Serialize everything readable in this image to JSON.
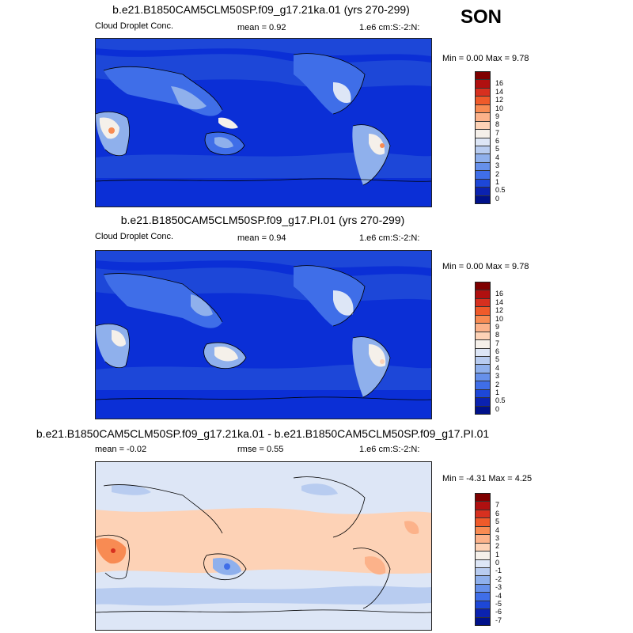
{
  "season": "SON",
  "panels": [
    {
      "title": "b.e21.B1850CAM5CLM50SP.f09_g17.21ka.01 (yrs 270-299)",
      "left_label": "Cloud Droplet Conc.",
      "center_label": "mean =   0.92",
      "right_label": "1.e6 cm:S:-2:N:",
      "minmax": "Min =   0.00 Max =   9.78",
      "colorbar": {
        "labels": [
          "16",
          "14",
          "12",
          "10",
          "9",
          "8",
          "7",
          "6",
          "5",
          "4",
          "3",
          "2",
          "1",
          "0.5",
          "0"
        ],
        "colors": [
          "#7f0000",
          "#b01010",
          "#d7301f",
          "#ef5a2a",
          "#f88b53",
          "#fcb28a",
          "#fdd2b6",
          "#f5f0ea",
          "#dde6f6",
          "#b8ccf0",
          "#8fb0ec",
          "#6690ea",
          "#3f6ee8",
          "#1d47d8",
          "#0b22b0",
          "#00118a"
        ]
      }
    },
    {
      "title": "b.e21.B1850CAM5CLM50SP.f09_g17.PI.01 (yrs 270-299)",
      "left_label": "Cloud Droplet Conc.",
      "center_label": "mean =   0.94",
      "right_label": "1.e6 cm:S:-2:N:",
      "minmax": "Min =   0.00 Max =   9.78",
      "colorbar": {
        "labels": [
          "16",
          "14",
          "12",
          "10",
          "9",
          "8",
          "7",
          "6",
          "5",
          "4",
          "3",
          "2",
          "1",
          "0.5",
          "0"
        ],
        "colors": [
          "#7f0000",
          "#b01010",
          "#d7301f",
          "#ef5a2a",
          "#f88b53",
          "#fcb28a",
          "#fdd2b6",
          "#f5f0ea",
          "#dde6f6",
          "#b8ccf0",
          "#8fb0ec",
          "#6690ea",
          "#3f6ee8",
          "#1d47d8",
          "#0b22b0",
          "#00118a"
        ]
      }
    },
    {
      "title": "b.e21.B1850CAM5CLM50SP.f09_g17.21ka.01 - b.e21.B1850CAM5CLM50SP.f09_g17.PI.01",
      "left_label": "mean =  -0.02",
      "center_label": "rmse =   0.55",
      "right_label": "1.e6 cm:S:-2:N:",
      "minmax": "Min =  -4.31 Max =   4.25",
      "colorbar": {
        "labels": [
          "7",
          "6",
          "5",
          "4",
          "3",
          "2",
          "1",
          "0",
          "-1",
          "-2",
          "-3",
          "-4",
          "-5",
          "-6",
          "-7"
        ],
        "colors": [
          "#7f0000",
          "#b01010",
          "#d7301f",
          "#ef5a2a",
          "#f88b53",
          "#fcb28a",
          "#fdd2b6",
          "#f5f0ea",
          "#dde6f6",
          "#b8ccf0",
          "#8fb0ec",
          "#6690ea",
          "#3f6ee8",
          "#1d47d8",
          "#0b22b0",
          "#00118a"
        ]
      }
    }
  ],
  "colors": {
    "ocean_dark": "#0b2fd6",
    "ocean_mid": "#1d47d8",
    "band_light": "#3f6ee8",
    "land_light": "#8fb0ec",
    "hot": "#f88b53",
    "diff_bg": "#dde6f6",
    "diff_warm": "#fdd2b6",
    "diff_cool": "#b8ccf0"
  }
}
